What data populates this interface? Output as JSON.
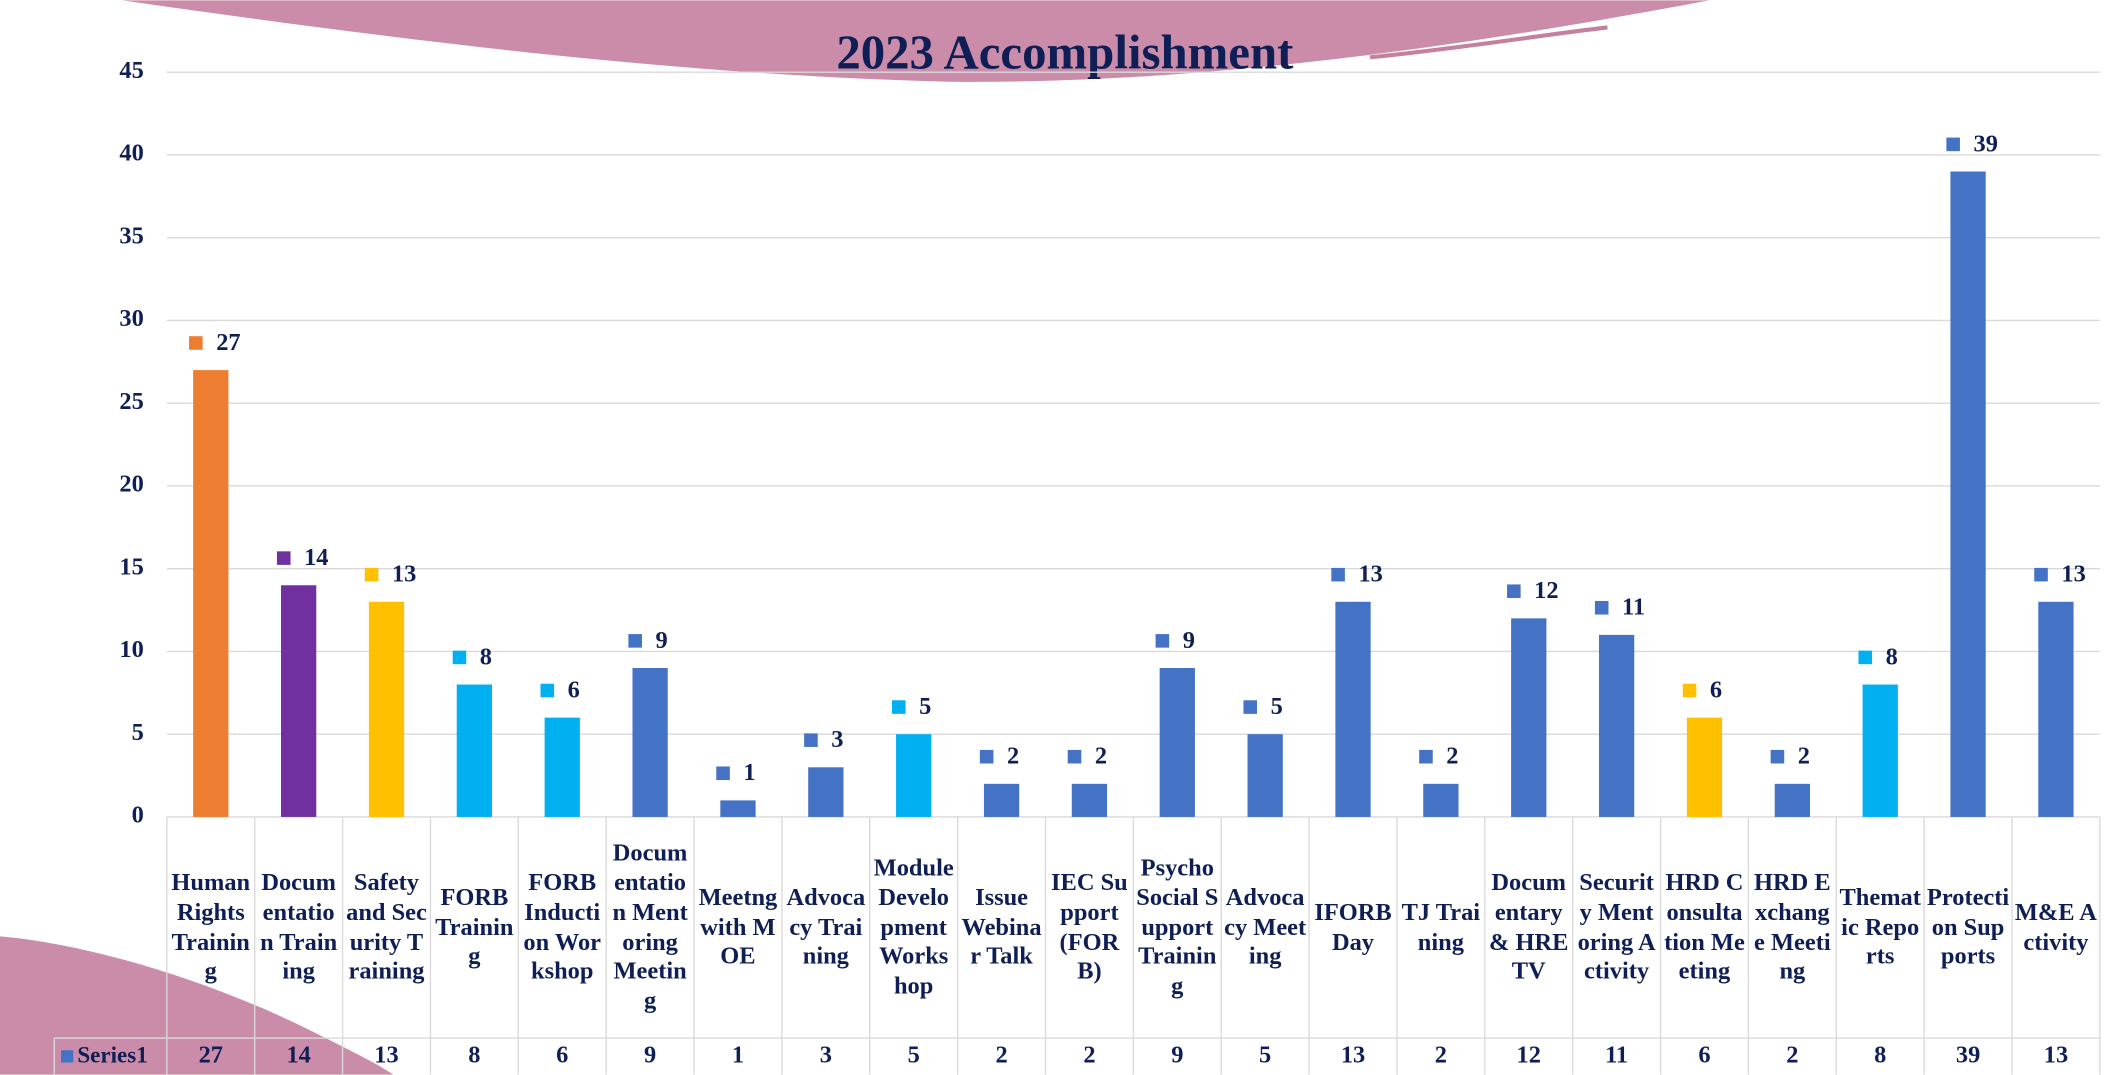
{
  "chart_data": {
    "type": "bar",
    "title": "2023 Accomplishment",
    "categories": [
      "Human Rights Training",
      "Documentation Training",
      "Safety and Security Training",
      "FORB Training",
      "FORB Induction Workshop",
      "Documentation Mentoring Meeting",
      "Meetng with MOE",
      "Advocacy Training",
      "Module Development Workshop",
      "Issue Webinar Talk",
      "IEC Support (FORB)",
      "Psycho Social Support Training",
      "Advocacy Meeting",
      "IFORB Day",
      "TJ Training",
      "Documentary & HRE TV",
      "Security Mentoring Activity",
      "HRD Consultation Meeting",
      "HRD Exchange Meeting",
      "Thematic Reports",
      "Protection Supports",
      "M&E Activity"
    ],
    "series": [
      {
        "name": "Series1",
        "color": "#4472c4",
        "values": [
          27,
          14,
          13,
          8,
          6,
          9,
          1,
          3,
          5,
          2,
          2,
          9,
          5,
          13,
          2,
          12,
          11,
          6,
          2,
          8,
          39,
          13
        ],
        "colors": [
          "#ed7d31",
          "#7030a0",
          "#ffc000",
          "#00b0f0",
          "#00b0f0",
          "#4472c4",
          "#4472c4",
          "#4472c4",
          "#00b0f0",
          "#4472c4",
          "#4472c4",
          "#4472c4",
          "#4472c4",
          "#4472c4",
          "#4472c4",
          "#4472c4",
          "#4472c4",
          "#ffc000",
          "#4472c4",
          "#00b0f0",
          "#4472c4",
          "#4472c4"
        ]
      }
    ],
    "ylim": [
      0,
      45
    ],
    "yticks": [
      0,
      5,
      10,
      15,
      20,
      25,
      30,
      35,
      40,
      45
    ],
    "grid": true,
    "data_table": true
  }
}
